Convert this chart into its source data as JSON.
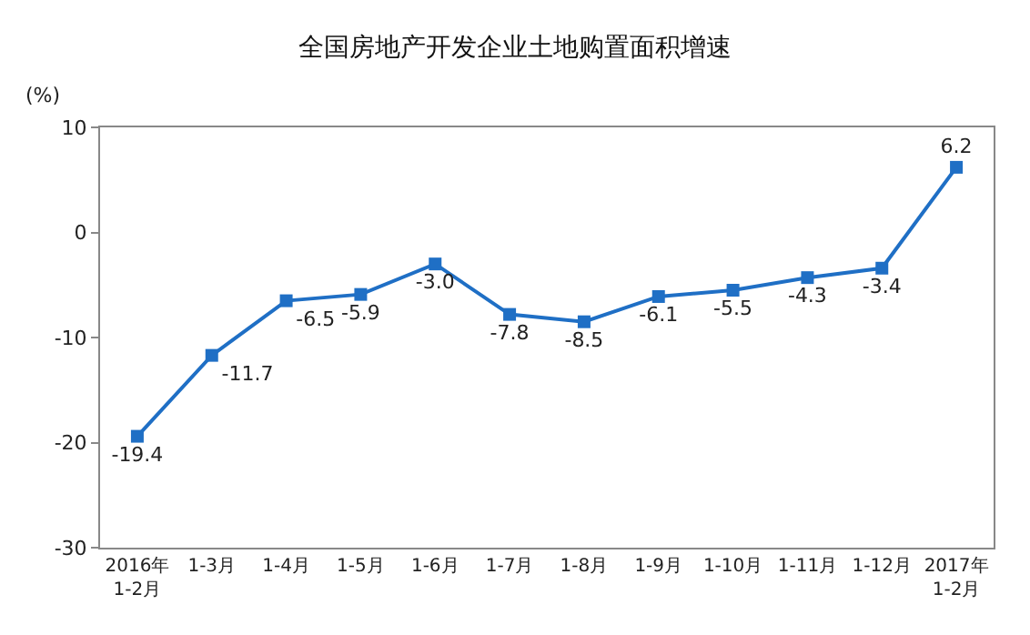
{
  "chart_data": {
    "type": "line",
    "title": "全国房地产开发企业土地购置面积增速",
    "ylabel": "(%)",
    "categories": [
      "2016年\n1-2月",
      "1-3月",
      "1-4月",
      "1-5月",
      "1-6月",
      "1-7月",
      "1-8月",
      "1-9月",
      "1-10月",
      "1-11月",
      "1-12月",
      "2017年\n1-2月"
    ],
    "series": [
      {
        "color": "#1f6fc5",
        "values": [
          -19.4,
          -11.7,
          -6.5,
          -5.9,
          -3.0,
          -7.8,
          -8.5,
          -6.1,
          -5.5,
          -4.3,
          -3.4,
          6.2
        ],
        "value_labels": [
          "-19.4",
          "-11.7",
          "-6.5",
          "-5.9",
          "-3.0",
          "-7.8",
          "-8.5",
          "-6.1",
          "-5.5",
          "-4.3",
          "-3.4",
          "6.2"
        ]
      }
    ],
    "ylim": [
      -30,
      10
    ],
    "yticks": [
      -30,
      -20,
      -10,
      0,
      10
    ],
    "marker": "square",
    "line_style": "solid"
  }
}
